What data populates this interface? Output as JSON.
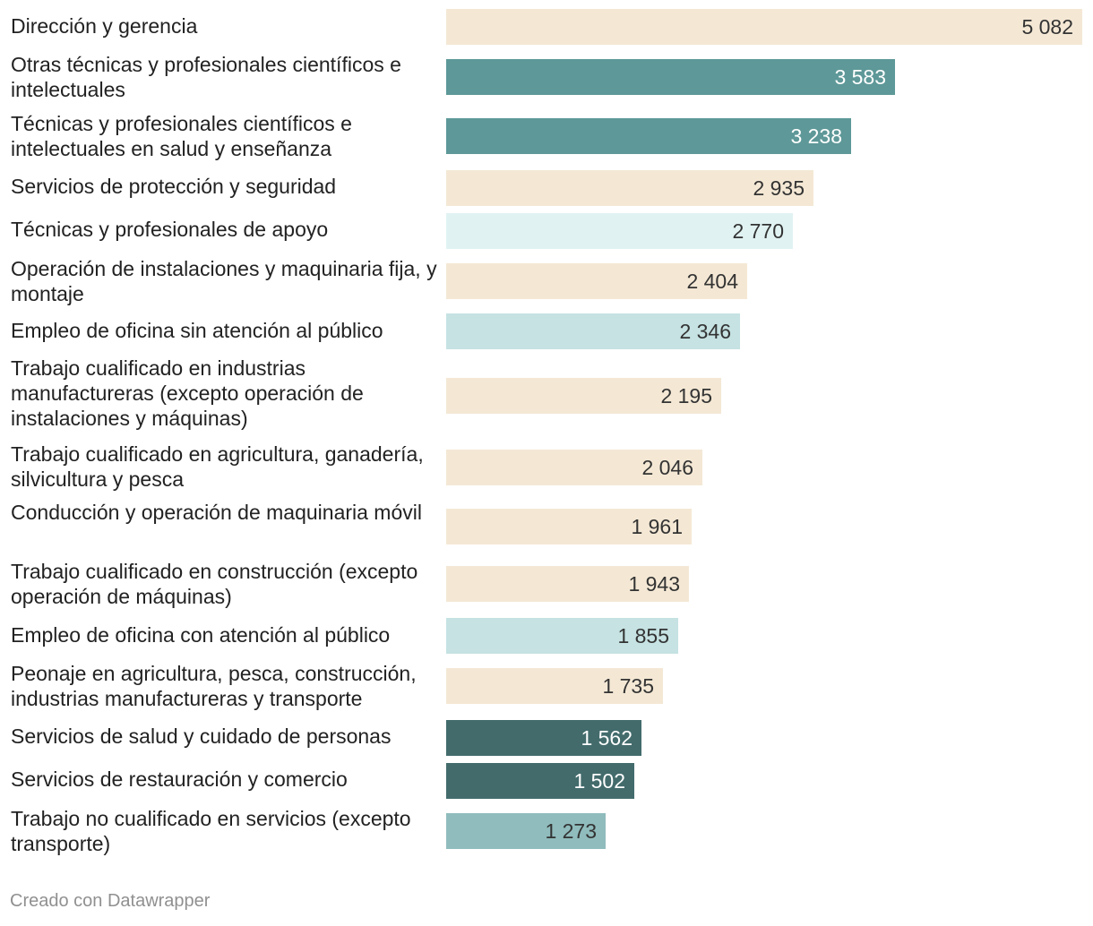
{
  "chart_data": {
    "type": "bar",
    "orientation": "horizontal",
    "title": "",
    "xlabel": "",
    "ylabel": "",
    "xlim": [
      0,
      5082
    ],
    "grid": false,
    "categories": [
      "Dirección y gerencia",
      "Otras técnicas y profesionales científicos e intelectuales",
      "Técnicas y profesionales científicos e intelectuales en salud y enseñanza",
      "Servicios de protección y seguridad",
      "Técnicas y profesionales de apoyo",
      "Operación de instalaciones y maquinaria fija, y montaje",
      "Empleo de oficina sin atención al público",
      "Trabajo cualificado en industrias manufactureras (excepto operación de instalaciones y máquinas)",
      "Trabajo cualificado en agricultura, ganadería, silvicultura y pesca",
      "Conducción y operación de maquinaria móvil",
      "Trabajo cualificado en construcción (excepto operación de máquinas)",
      "Empleo de oficina con atención al público",
      "Peonaje en agricultura, pesca, construcción, industrias manufactureras y transporte",
      "Servicios de salud y cuidado de personas",
      "Servicios de restauración y comercio",
      "Trabajo no cualificado en servicios (excepto transporte)"
    ],
    "values": [
      5082,
      3583,
      3238,
      2935,
      2770,
      2404,
      2346,
      2195,
      2046,
      1961,
      1943,
      1855,
      1735,
      1562,
      1502,
      1273
    ],
    "value_labels": [
      "5 082",
      "3 583",
      "3 238",
      "2 935",
      "2 770",
      "2 404",
      "2 346",
      "2 195",
      "2 046",
      "1 961",
      "1 943",
      "1 855",
      "1 735",
      "1 562",
      "1 502",
      "1 273"
    ],
    "bar_colors": [
      "#f4e8d5",
      "#5e9898",
      "#5e9898",
      "#f4e8d5",
      "#e1f2f2",
      "#f4e8d5",
      "#c6e2e3",
      "#f4e8d5",
      "#f4e8d5",
      "#f4e8d5",
      "#f4e8d5",
      "#c6e2e3",
      "#f4e8d5",
      "#436b6c",
      "#436b6c",
      "#90bcbd"
    ],
    "value_label_colors": [
      "#333333",
      "#ffffff",
      "#ffffff",
      "#333333",
      "#333333",
      "#333333",
      "#333333",
      "#333333",
      "#333333",
      "#333333",
      "#333333",
      "#333333",
      "#333333",
      "#ffffff",
      "#ffffff",
      "#333333"
    ]
  },
  "footer": {
    "credit": "Creado con Datawrapper"
  }
}
